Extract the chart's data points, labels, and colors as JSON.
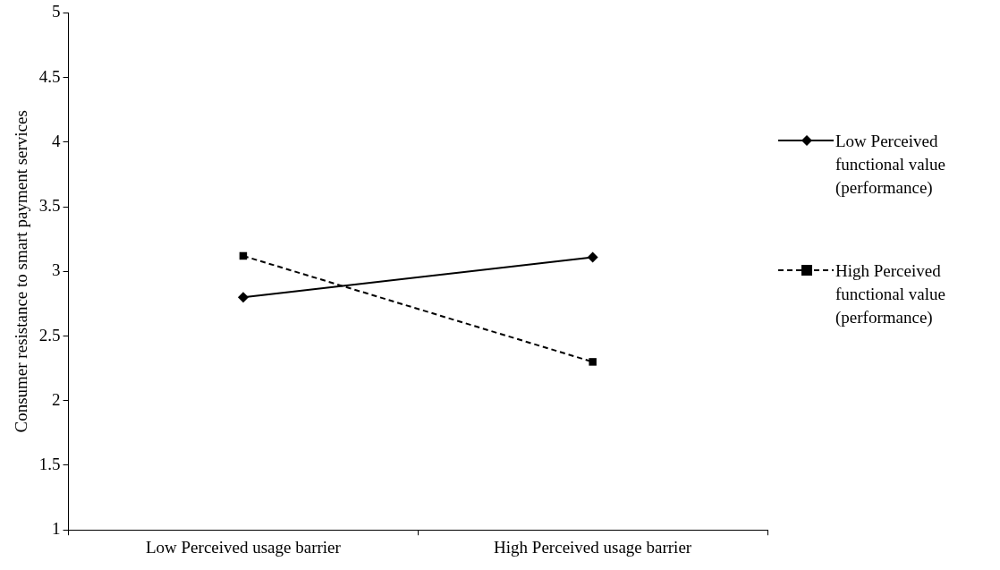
{
  "chart_data": {
    "type": "line",
    "ylabel": "Consumer resistance to smart payment services",
    "categories": [
      "Low Perceived usage barrier",
      "High Perceived usage barrier"
    ],
    "ylim": [
      1,
      5
    ],
    "yticks": [
      1,
      1.5,
      2,
      2.5,
      3,
      3.5,
      4,
      4.5,
      5
    ],
    "grid": false,
    "legend": "right",
    "series": [
      {
        "name": "Low Perceived functional value (performance)",
        "color": "#000000",
        "values": [
          2.8,
          3.11
        ],
        "marker": "diamond",
        "line_style": "solid"
      },
      {
        "name": "High Perceived functional value (performance)",
        "color": "#000000",
        "values": [
          3.12,
          2.3
        ],
        "marker": "square",
        "line_style": "dashed"
      }
    ]
  }
}
